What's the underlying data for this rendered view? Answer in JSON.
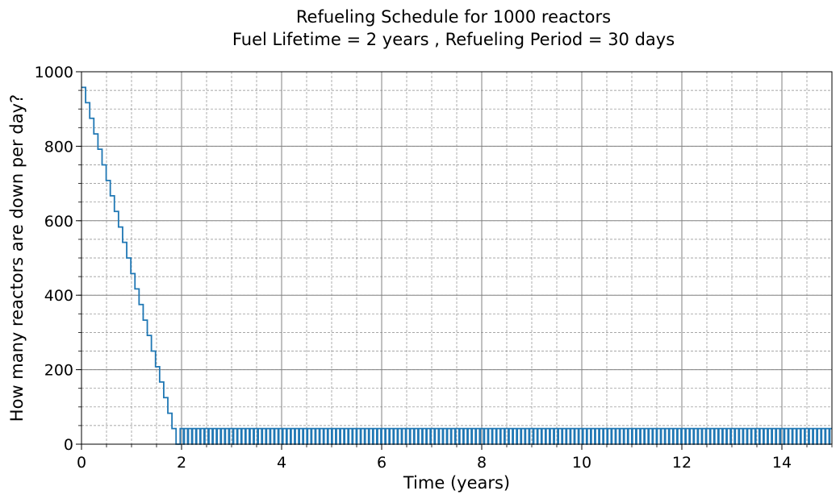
{
  "chart_data": {
    "type": "line",
    "title": "Refueling Schedule for 1000 reactors",
    "subtitle": "Fuel Lifetime = 2 years , Refueling Period = 30 days",
    "xlabel": "Time (years)",
    "ylabel": "How many reactors are down per day?",
    "xlim": [
      0,
      15
    ],
    "ylim": [
      0,
      1000
    ],
    "x_ticks": [
      0,
      2,
      4,
      6,
      8,
      10,
      12,
      14
    ],
    "y_ticks": [
      0,
      200,
      400,
      600,
      800,
      1000
    ],
    "x_minor_step": 0.5,
    "y_minor_step": 50,
    "grid": true,
    "line_color": "#1f77b4",
    "series": [
      {
        "step": "post",
        "ramp": {
          "x": [
            0,
            0.0822,
            0.1644,
            0.2466,
            0.3288,
            0.411,
            0.4932,
            0.5753,
            0.6575,
            0.7397,
            0.8219,
            0.9041,
            0.9863,
            1.0685,
            1.1507,
            1.2329,
            1.3151,
            1.3973,
            1.4795,
            1.5616,
            1.6438,
            1.726,
            1.8082,
            1.8904
          ],
          "y": [
            958,
            917,
            875,
            833,
            792,
            750,
            708,
            667,
            625,
            583,
            542,
            500,
            458,
            417,
            375,
            333,
            292,
            250,
            208,
            167,
            125,
            83,
            42,
            0
          ]
        },
        "periodic": {
          "x_start": 1.9726,
          "x_end": 15,
          "period_years": 0.0822,
          "high": 42,
          "low": 0,
          "low_fraction": 0.2,
          "cycle_years": 2.0548
        }
      }
    ]
  }
}
